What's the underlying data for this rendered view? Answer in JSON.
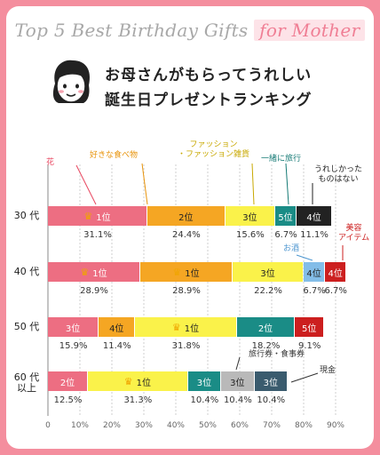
{
  "title": {
    "part1": "Top 5 Best Birthday Gifts ",
    "part2": "for Mother"
  },
  "headline": {
    "line1": "お母さんがもらってうれしい",
    "line2": "誕生日プレゼントランキング"
  },
  "colors": {
    "flower": "#ed6e82",
    "food": "#f5a623",
    "fashion": "#faf24a",
    "travel": "#1a8c86",
    "none": "#222222",
    "sake": "#83bde8",
    "beauty": "#cc1f1f",
    "voucher": "#b9b9b9",
    "cash": "#3a5b6e"
  },
  "chart_data": {
    "type": "bar",
    "orientation": "horizontal-stacked",
    "xlim": [
      0,
      90
    ],
    "xticks": [
      "0",
      "10%",
      "20%",
      "30%",
      "40%",
      "50%",
      "60%",
      "70%",
      "80%",
      "90%"
    ],
    "rows": [
      {
        "label": "30 代",
        "segments": [
          {
            "category": "花",
            "value": 31.1,
            "rank": "1位",
            "pct": "31.1%",
            "color": "flower",
            "crown": true
          },
          {
            "category": "好きな食べ物",
            "value": 24.4,
            "rank": "2位",
            "pct": "24.4%",
            "color": "food"
          },
          {
            "category": "ファッション・ファッション雑貨",
            "value": 15.6,
            "rank": "3位",
            "pct": "15.6%",
            "color": "fashion"
          },
          {
            "category": "一緒に旅行",
            "value": 6.7,
            "rank": "5位",
            "pct": "6.7%",
            "color": "travel"
          },
          {
            "category": "うれしかったものはない",
            "value": 11.1,
            "rank": "4位",
            "pct": "11.1%",
            "color": "none"
          }
        ]
      },
      {
        "label": "40 代",
        "segments": [
          {
            "category": "花",
            "value": 28.9,
            "rank": "1位",
            "pct": "28.9%",
            "color": "flower",
            "crown": true
          },
          {
            "category": "好きな食べ物",
            "value": 28.9,
            "rank": "1位",
            "pct": "28.9%",
            "color": "food",
            "crown": true
          },
          {
            "category": "ファッション・ファッション雑貨",
            "value": 22.2,
            "rank": "3位",
            "pct": "22.2%",
            "color": "fashion"
          },
          {
            "category": "お酒",
            "value": 6.7,
            "rank": "4位",
            "pct": "6.7%",
            "color": "sake"
          },
          {
            "category": "美容アイテム",
            "value": 6.7,
            "rank": "4位",
            "pct": "6.7%",
            "color": "beauty"
          }
        ]
      },
      {
        "label": "50 代",
        "segments": [
          {
            "category": "花",
            "value": 15.9,
            "rank": "3位",
            "pct": "15.9%",
            "color": "flower"
          },
          {
            "category": "好きな食べ物",
            "value": 11.4,
            "rank": "4位",
            "pct": "11.4%",
            "color": "food"
          },
          {
            "category": "ファッション・ファッション雑貨",
            "value": 31.8,
            "rank": "1位",
            "pct": "31.8%",
            "color": "fashion",
            "crown": true
          },
          {
            "category": "一緒に旅行",
            "value": 18.2,
            "rank": "2位",
            "pct": "18.2%",
            "color": "travel"
          },
          {
            "category": "美容アイテム",
            "value": 9.1,
            "rank": "5位",
            "pct": "9.1%",
            "color": "beauty"
          }
        ]
      },
      {
        "label": "60 代\n以上",
        "segments": [
          {
            "category": "花",
            "value": 12.5,
            "rank": "2位",
            "pct": "12.5%",
            "color": "flower"
          },
          {
            "category": "ファッション・ファッション雑貨",
            "value": 31.3,
            "rank": "1位",
            "pct": "31.3%",
            "color": "fashion",
            "crown": true
          },
          {
            "category": "一緒に旅行",
            "value": 10.4,
            "rank": "3位",
            "pct": "10.4%",
            "color": "travel"
          },
          {
            "category": "旅行券・食事券",
            "value": 10.4,
            "rank": "3位",
            "pct": "10.4%",
            "color": "voucher"
          },
          {
            "category": "現金",
            "value": 10.4,
            "rank": "3位",
            "pct": "10.4%",
            "color": "cash"
          }
        ]
      }
    ],
    "category_labels": [
      {
        "text": "花",
        "color": "#e8445e"
      },
      {
        "text": "好きな食べ物",
        "color": "#e8940c"
      },
      {
        "text": "ファッション\n・ファッション雑貨",
        "color": "#c8a800"
      },
      {
        "text": "一緒に旅行",
        "color": "#157a75"
      },
      {
        "text": "うれしかった\nものはない",
        "color": "#222222"
      },
      {
        "text": "美容\nアイテム",
        "color": "#cc1f1f"
      },
      {
        "text": "お酒",
        "color": "#4d96d0"
      },
      {
        "text": "旅行券・食事券",
        "color": "#333333"
      },
      {
        "text": "現金",
        "color": "#333333"
      }
    ]
  }
}
